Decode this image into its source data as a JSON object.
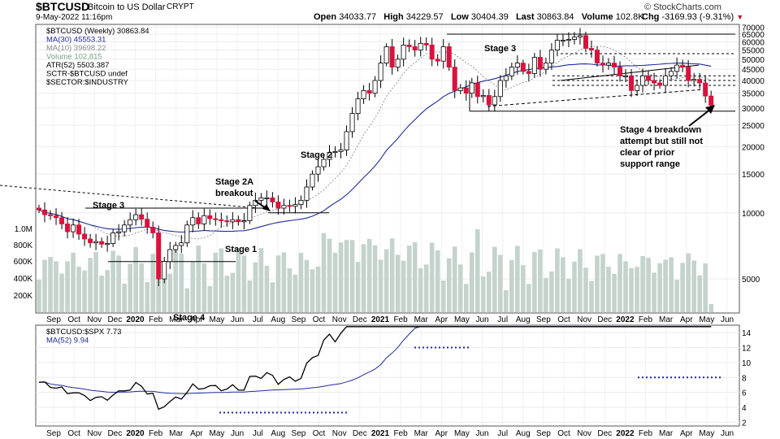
{
  "header": {
    "symbol": "$BTCUSD",
    "name": "Bitcoin to US Dollar",
    "exchange": "CRYPT",
    "brand": "© StockCharts.com",
    "date": "9-May-2022 11:16pm",
    "open_label": "Open",
    "open": "34033.77",
    "high_label": "High",
    "high": "34229.57",
    "low_label": "Low",
    "low": "30404.39",
    "last_label": "Last",
    "last": "30863.84",
    "volume_label": "Volume",
    "volume": "102.8K",
    "chg_label": "Chg",
    "chg": "-3169.93 (-9.31%)",
    "down_arrow": "▼"
  },
  "legend_main": [
    {
      "text": "$BTCUSD (Weekly) 30863.84",
      "color": "#000000"
    },
    {
      "text": "MA(30) 45553.31",
      "color": "#1f2a9c"
    },
    {
      "text": "MA(10) 39698.22",
      "color": "#888888"
    },
    {
      "text": "Volume 102,815",
      "color": "#7aa08a"
    },
    {
      "text": "ATR(52) 5503.387",
      "color": "#000000"
    },
    {
      "text": "SCTR-$BTCUSD undef",
      "color": "#000000"
    },
    {
      "text": "$SECTOR:$INDUSTRY",
      "color": "#000000"
    }
  ],
  "legend_lower": [
    {
      "text": "$BTCUSD:$SPX 7.73",
      "color": "#000000"
    },
    {
      "text": "MA(52) 9.94",
      "color": "#1f2a9c"
    }
  ],
  "annotations": {
    "stage3_left": "Stage 3",
    "stage2a_line1": "Stage 2A",
    "stage2a_line2": "breakout",
    "stage1": "Stage 1",
    "stage2": "Stage 2",
    "stage3_top": "Stage 3",
    "stage4_bottom": "Stage 4",
    "stage4_note": [
      "Stage 4 breakdown",
      "attempt but still not",
      "clear of prior",
      "support range"
    ]
  },
  "colors": {
    "up": "#ffffff",
    "down": "#d9123d",
    "ma30": "#1f2a9c",
    "ma10": "#8c8c8c",
    "volume": "#c4d3cb",
    "ratio": "#000000",
    "ratio_ma": "#1f2a9c",
    "support": "#1f2a9c"
  },
  "chart_data": [
    {
      "type": "candlestick",
      "title": "$BTCUSD (Weekly)",
      "timeframe": "weekly",
      "y_scale": "log",
      "ylim": [
        3500,
        72000
      ],
      "price_ticks": [
        "70000",
        "65000",
        "60000",
        "55000",
        "50000",
        "45000",
        "40000",
        "35000",
        "30000",
        "25000",
        "20000",
        "15000",
        "10000",
        "5000"
      ],
      "volume_ticks": [
        "1.0M",
        "800K",
        "600K",
        "400K",
        "200K"
      ],
      "x_ticks": [
        "Sep",
        "Oct",
        "Nov",
        "Dec",
        "2020",
        "Feb",
        "Mar",
        "Apr",
        "May",
        "Jun",
        "Jul",
        "Aug",
        "Sep",
        "Oct",
        "Nov",
        "Dec",
        "2021",
        "Feb",
        "Mar",
        "Apr",
        "May",
        "Jun",
        "Jul",
        "Aug",
        "Sep",
        "Oct",
        "Nov",
        "Dec",
        "2022",
        "Feb",
        "Mar",
        "Apr",
        "May",
        "Jun"
      ],
      "x_axis_bold": [
        "2020",
        "2021",
        "2022"
      ],
      "closes": [
        10300,
        9800,
        9700,
        9500,
        8900,
        8200,
        8800,
        8000,
        7600,
        7300,
        7400,
        7200,
        7250,
        8100,
        8200,
        8800,
        9300,
        9800,
        9350,
        8600,
        8100,
        5000,
        6000,
        6800,
        7100,
        7300,
        8800,
        9500,
        8900,
        9700,
        9400,
        9300,
        9200,
        9100,
        9300,
        9100,
        9200,
        10800,
        11400,
        11700,
        11700,
        11200,
        10500,
        10800,
        10700,
        10900,
        11400,
        13100,
        15000,
        16200,
        17500,
        18800,
        19000,
        19300,
        23400,
        28300,
        33000,
        36000,
        35000,
        40000,
        48000,
        57000,
        46000,
        50000,
        58000,
        57000,
        55000,
        59000,
        58000,
        50000,
        49000,
        57000,
        46000,
        36000,
        37000,
        35000,
        39000,
        33800,
        34200,
        31000,
        33800,
        40000,
        42000,
        46000,
        48000,
        44000,
        43000,
        51000,
        45000,
        48000,
        55000,
        61000,
        61000,
        61500,
        63000,
        64000,
        56000,
        55000,
        48000,
        47000,
        48000,
        46000,
        42000,
        42000,
        36000,
        38000,
        42000,
        40000,
        39000,
        38000,
        42000,
        44000,
        47000,
        46000,
        40000,
        40500,
        39000,
        34000,
        30863
      ],
      "annotation_levels": {
        "stage3_2019_top": 10500,
        "stage3_2019_support": 6000,
        "stage2a_breakout": 10000,
        "stage3_top": 65000,
        "stage3_mid": 53000,
        "stage3_lines": [
          42000,
          40000,
          38000
        ],
        "stage3_support": 29000
      }
    },
    {
      "type": "line",
      "title": "$BTCUSD:$SPX",
      "series": [
        {
          "name": "$BTCUSD:$SPX",
          "last": 7.73
        },
        {
          "name": "MA(52)",
          "last": 9.94
        }
      ],
      "y_ticks": [
        2,
        4,
        6,
        8,
        10,
        12,
        14
      ],
      "ylim": [
        1.5,
        15
      ]
    }
  ]
}
